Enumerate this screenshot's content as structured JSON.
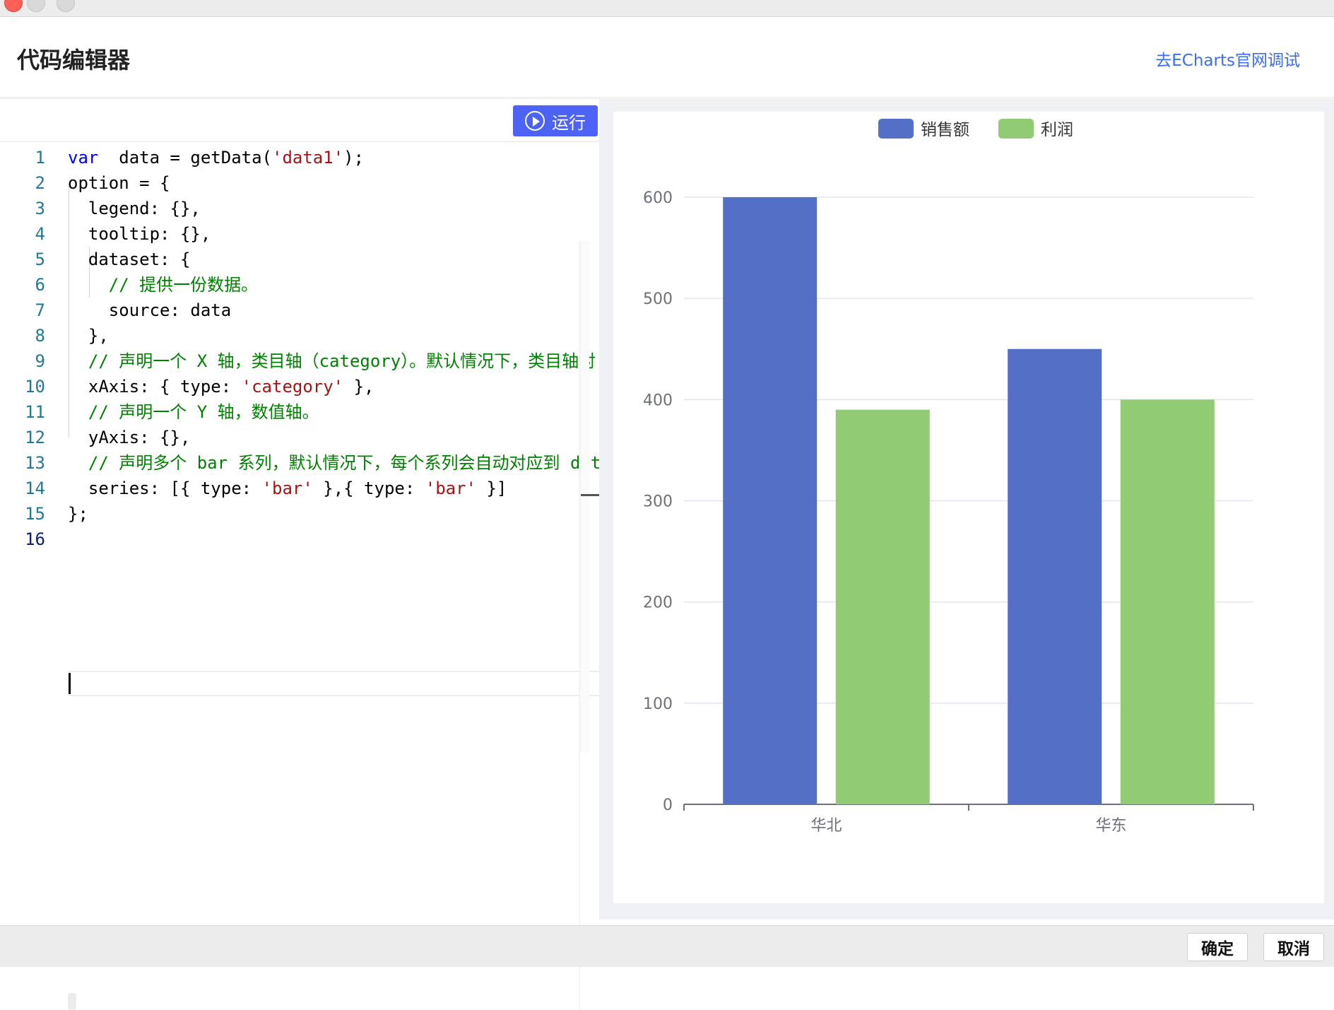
{
  "header": {
    "title": "代码编辑器",
    "echarts_link": "去ECharts官网调试"
  },
  "editor": {
    "run_label": "运行",
    "lines": [
      {
        "num": "1",
        "tokens": [
          [
            "kw",
            "var"
          ],
          [
            "",
            "  data = getData("
          ],
          [
            "str",
            "'data1'"
          ],
          [
            "",
            ");"
          ]
        ]
      },
      {
        "num": "2",
        "tokens": [
          [
            "",
            "option = {"
          ]
        ]
      },
      {
        "num": "3",
        "tokens": [
          [
            "",
            "  legend: {},"
          ]
        ]
      },
      {
        "num": "4",
        "tokens": [
          [
            "",
            "  tooltip: {},"
          ]
        ]
      },
      {
        "num": "5",
        "tokens": [
          [
            "",
            "  dataset: {"
          ]
        ]
      },
      {
        "num": "6",
        "tokens": [
          [
            "cm",
            "    // 提供一份数据。"
          ]
        ]
      },
      {
        "num": "7",
        "tokens": [
          [
            "",
            "    source: data"
          ]
        ]
      },
      {
        "num": "8",
        "tokens": [
          [
            "",
            "  },"
          ]
        ]
      },
      {
        "num": "9",
        "tokens": [
          [
            "cm",
            "  // 声明一个 X 轴，类目轴（category）。默认情况下，类目轴对"
          ]
        ]
      },
      {
        "num": "10",
        "tokens": [
          [
            "",
            "  xAxis: { type: "
          ],
          [
            "str",
            "'category'"
          ],
          [
            "",
            " },"
          ]
        ]
      },
      {
        "num": "11",
        "tokens": [
          [
            "cm",
            "  // 声明一个 Y 轴，数值轴。"
          ]
        ]
      },
      {
        "num": "12",
        "tokens": [
          [
            "",
            "  yAxis: {},"
          ]
        ]
      },
      {
        "num": "13",
        "tokens": [
          [
            "cm",
            "  // 声明多个 bar 系列，默认情况下，每个系列会自动对应到 dat"
          ]
        ]
      },
      {
        "num": "14",
        "tokens": [
          [
            "",
            "  series: [{ type: "
          ],
          [
            "str",
            "'bar'"
          ],
          [
            "",
            " },{ type: "
          ],
          [
            "str",
            "'bar'"
          ],
          [
            "",
            " }]"
          ]
        ]
      },
      {
        "num": "15",
        "tokens": [
          [
            "",
            "};"
          ]
        ]
      },
      {
        "num": "16",
        "tokens": [
          [
            "",
            ""
          ]
        ]
      }
    ],
    "active_line": "16"
  },
  "chart_data": {
    "type": "bar",
    "categories": [
      "华北",
      "华东"
    ],
    "series": [
      {
        "name": "销售额",
        "values": [
          600,
          450
        ],
        "color": "#5470c6"
      },
      {
        "name": "利润",
        "values": [
          390,
          400
        ],
        "color": "#91cc75"
      }
    ],
    "ylim": [
      0,
      600
    ],
    "yticks": [
      0,
      100,
      200,
      300,
      400,
      500,
      600
    ],
    "legend_position": "top-center",
    "grid": true
  },
  "footer": {
    "ok_label": "确定",
    "cancel_label": "取消"
  },
  "colors": {
    "accent": "#4d63f5",
    "link": "#3c6cf0"
  }
}
